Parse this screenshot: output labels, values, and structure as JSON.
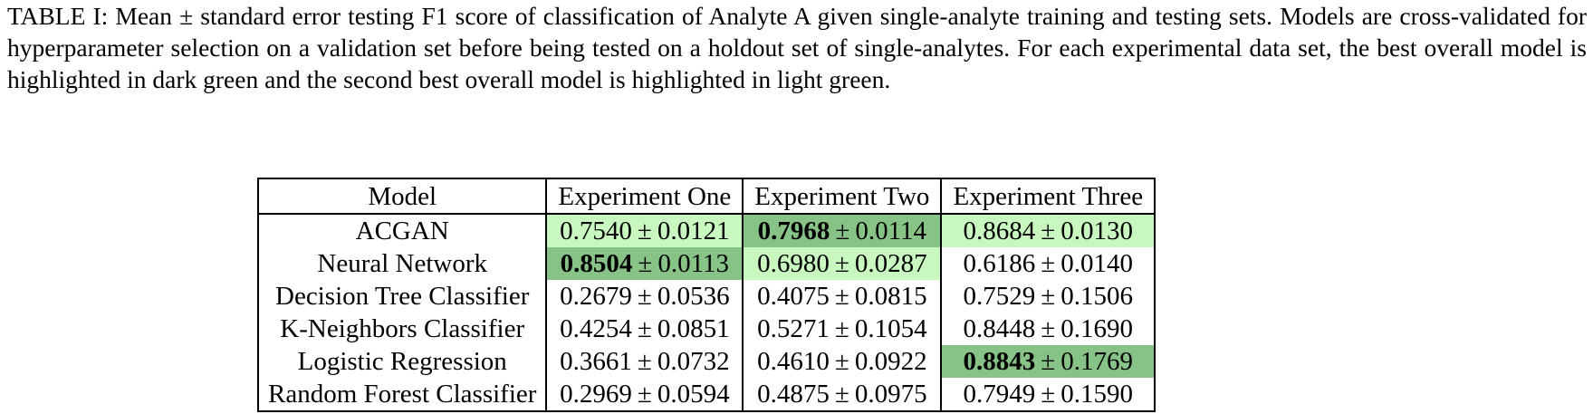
{
  "caption": "TABLE I: Mean ± standard error testing F1 score of classification of Analyte A given single-analyte training and testing sets. Models are cross-validated for hyperparameter selection on a validation set before being tested on a holdout set of single-analytes. For each experimental data set, the best overall model is highlighted in dark green and the second best overall model is highlighted in light green.",
  "table": {
    "headers": [
      "Model",
      "Experiment One",
      "Experiment Two",
      "Experiment Three"
    ],
    "rows": [
      {
        "model": "ACGAN",
        "cells": [
          {
            "mean": "0.7540",
            "se": "0.0121",
            "highlight": "second",
            "bold": false
          },
          {
            "mean": "0.7968",
            "se": "0.0114",
            "highlight": "best",
            "bold": true
          },
          {
            "mean": "0.8684",
            "se": "0.0130",
            "highlight": "second",
            "bold": false
          }
        ]
      },
      {
        "model": "Neural Network",
        "cells": [
          {
            "mean": "0.8504",
            "se": "0.0113",
            "highlight": "best",
            "bold": true
          },
          {
            "mean": "0.6980",
            "se": "0.0287",
            "highlight": "second",
            "bold": false
          },
          {
            "mean": "0.6186",
            "se": "0.0140",
            "highlight": "none",
            "bold": false
          }
        ]
      },
      {
        "model": "Decision Tree Classifier",
        "cells": [
          {
            "mean": "0.2679",
            "se": "0.0536",
            "highlight": "none",
            "bold": false
          },
          {
            "mean": "0.4075",
            "se": "0.0815",
            "highlight": "none",
            "bold": false
          },
          {
            "mean": "0.7529",
            "se": "0.1506",
            "highlight": "none",
            "bold": false
          }
        ]
      },
      {
        "model": "K-Neighbors Classifier",
        "cells": [
          {
            "mean": "0.4254",
            "se": "0.0851",
            "highlight": "none",
            "bold": false
          },
          {
            "mean": "0.5271",
            "se": "0.1054",
            "highlight": "none",
            "bold": false
          },
          {
            "mean": "0.8448",
            "se": "0.1690",
            "highlight": "none",
            "bold": false
          }
        ]
      },
      {
        "model": "Logistic Regression",
        "cells": [
          {
            "mean": "0.3661",
            "se": "0.0732",
            "highlight": "none",
            "bold": false
          },
          {
            "mean": "0.4610",
            "se": "0.0922",
            "highlight": "none",
            "bold": false
          },
          {
            "mean": "0.8843",
            "se": "0.1769",
            "highlight": "best",
            "bold": true
          }
        ]
      },
      {
        "model": "Random Forest Classifier",
        "cells": [
          {
            "mean": "0.2969",
            "se": "0.0594",
            "highlight": "none",
            "bold": false
          },
          {
            "mean": "0.4875",
            "se": "0.0975",
            "highlight": "none",
            "bold": false
          },
          {
            "mean": "0.7949",
            "se": "0.1590",
            "highlight": "none",
            "bold": false
          }
        ]
      }
    ]
  },
  "colors": {
    "best": "#87c287",
    "second": "#c8f7c0"
  },
  "pm_symbol": "±"
}
